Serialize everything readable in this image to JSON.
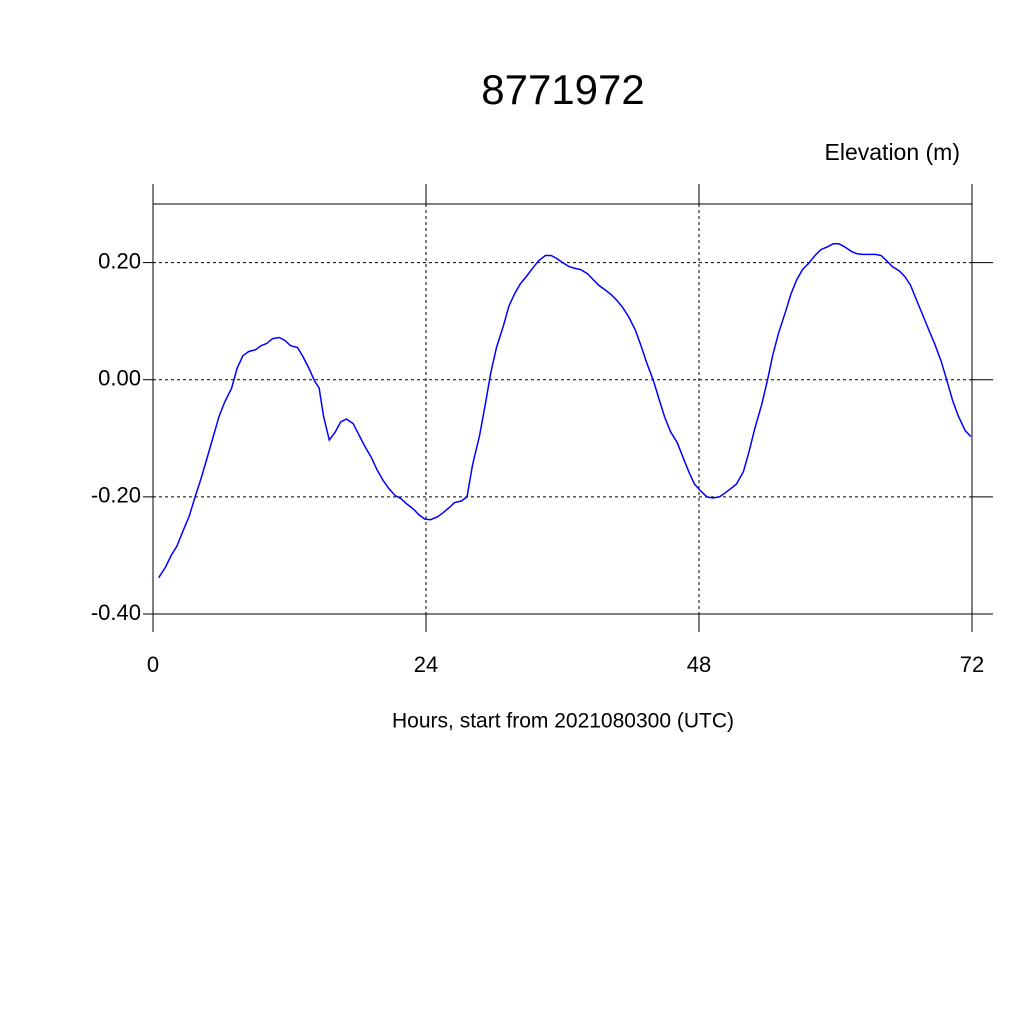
{
  "chart_data": {
    "type": "line",
    "title": "8771972",
    "y_label": "Elevation (m)",
    "x_label": "Hours, start from 2021080300 (UTC)",
    "x": [
      0.5,
      1.1,
      1.6,
      2.1,
      2.6,
      3.2,
      3.7,
      4.2,
      4.7,
      5.3,
      5.8,
      6.3,
      6.9,
      7.4,
      7.9,
      8.4,
      9.0,
      9.5,
      10.0,
      10.5,
      11.1,
      11.6,
      12.1,
      12.7,
      13.2,
      13.7,
      14.2,
      14.6,
      15.0,
      15.5,
      16.0,
      16.5,
      17.0,
      17.6,
      18.1,
      18.6,
      19.2,
      19.7,
      20.2,
      20.7,
      21.3,
      21.8,
      22.3,
      22.9,
      23.4,
      23.9,
      24.4,
      25.0,
      25.5,
      26.0,
      26.5,
      27.1,
      27.6,
      28.1,
      28.7,
      29.2,
      29.7,
      30.2,
      30.8,
      31.3,
      31.8,
      32.3,
      32.9,
      33.4,
      33.9,
      34.5,
      35.0,
      35.5,
      36.0,
      36.6,
      37.1,
      37.6,
      38.2,
      38.7,
      39.2,
      39.7,
      40.3,
      40.8,
      41.3,
      41.8,
      42.4,
      42.9,
      43.4,
      44.0,
      44.5,
      45.0,
      45.5,
      46.1,
      46.6,
      47.1,
      47.6,
      48.2,
      48.7,
      49.2,
      49.8,
      50.3,
      50.8,
      51.3,
      51.9,
      52.4,
      52.9,
      53.5,
      54.0,
      54.5,
      55.0,
      55.6,
      56.1,
      56.6,
      57.1,
      57.7,
      58.2,
      58.7,
      59.3,
      59.8,
      60.3,
      60.8,
      61.4,
      61.9,
      62.4,
      62.9,
      63.5,
      64.0,
      64.5,
      65.0,
      65.6,
      66.1,
      66.6,
      67.1,
      67.7,
      68.2,
      68.7,
      69.3,
      69.8,
      70.3,
      70.8,
      71.4,
      71.9
    ],
    "series": [
      {
        "color": "#0000ff",
        "values": [
          -0.338,
          -0.32,
          -0.3,
          -0.284,
          -0.26,
          -0.232,
          -0.2,
          -0.17,
          -0.137,
          -0.097,
          -0.063,
          -0.038,
          -0.015,
          0.02,
          0.041,
          0.048,
          0.051,
          0.058,
          0.062,
          0.07,
          0.072,
          0.067,
          0.058,
          0.055,
          0.039,
          0.02,
          -0.002,
          -0.014,
          -0.063,
          -0.103,
          -0.09,
          -0.072,
          -0.067,
          -0.075,
          -0.094,
          -0.113,
          -0.133,
          -0.154,
          -0.171,
          -0.185,
          -0.198,
          -0.203,
          -0.212,
          -0.221,
          -0.231,
          -0.238,
          -0.239,
          -0.234,
          -0.227,
          -0.219,
          -0.21,
          -0.207,
          -0.2,
          -0.145,
          -0.096,
          -0.044,
          0.012,
          0.055,
          0.092,
          0.126,
          0.147,
          0.164,
          0.178,
          0.191,
          0.203,
          0.212,
          0.212,
          0.207,
          0.2,
          0.193,
          0.19,
          0.188,
          0.181,
          0.171,
          0.161,
          0.154,
          0.145,
          0.135,
          0.123,
          0.108,
          0.085,
          0.058,
          0.029,
          -0.002,
          -0.034,
          -0.065,
          -0.089,
          -0.108,
          -0.133,
          -0.157,
          -0.178,
          -0.191,
          -0.2,
          -0.202,
          -0.2,
          -0.193,
          -0.186,
          -0.178,
          -0.157,
          -0.123,
          -0.084,
          -0.043,
          -0.002,
          0.043,
          0.08,
          0.116,
          0.147,
          0.171,
          0.188,
          0.2,
          0.212,
          0.222,
          0.227,
          0.232,
          0.232,
          0.227,
          0.219,
          0.215,
          0.214,
          0.214,
          0.214,
          0.212,
          0.203,
          0.193,
          0.186,
          0.176,
          0.161,
          0.137,
          0.109,
          0.085,
          0.062,
          0.031,
          -0.002,
          -0.036,
          -0.062,
          -0.087,
          -0.097
        ]
      }
    ],
    "xlim": [
      0,
      72
    ],
    "xticks": [
      0,
      24,
      48,
      72
    ],
    "ylim": [
      -0.4,
      0.3
    ],
    "yticks": [
      {
        "value": -0.4,
        "label": "-0.40"
      },
      {
        "value": -0.2,
        "label": "-0.20"
      },
      {
        "value": 0,
        "label": "0.00"
      },
      {
        "value": 0.2,
        "label": "0.20"
      }
    ],
    "grid": true
  }
}
